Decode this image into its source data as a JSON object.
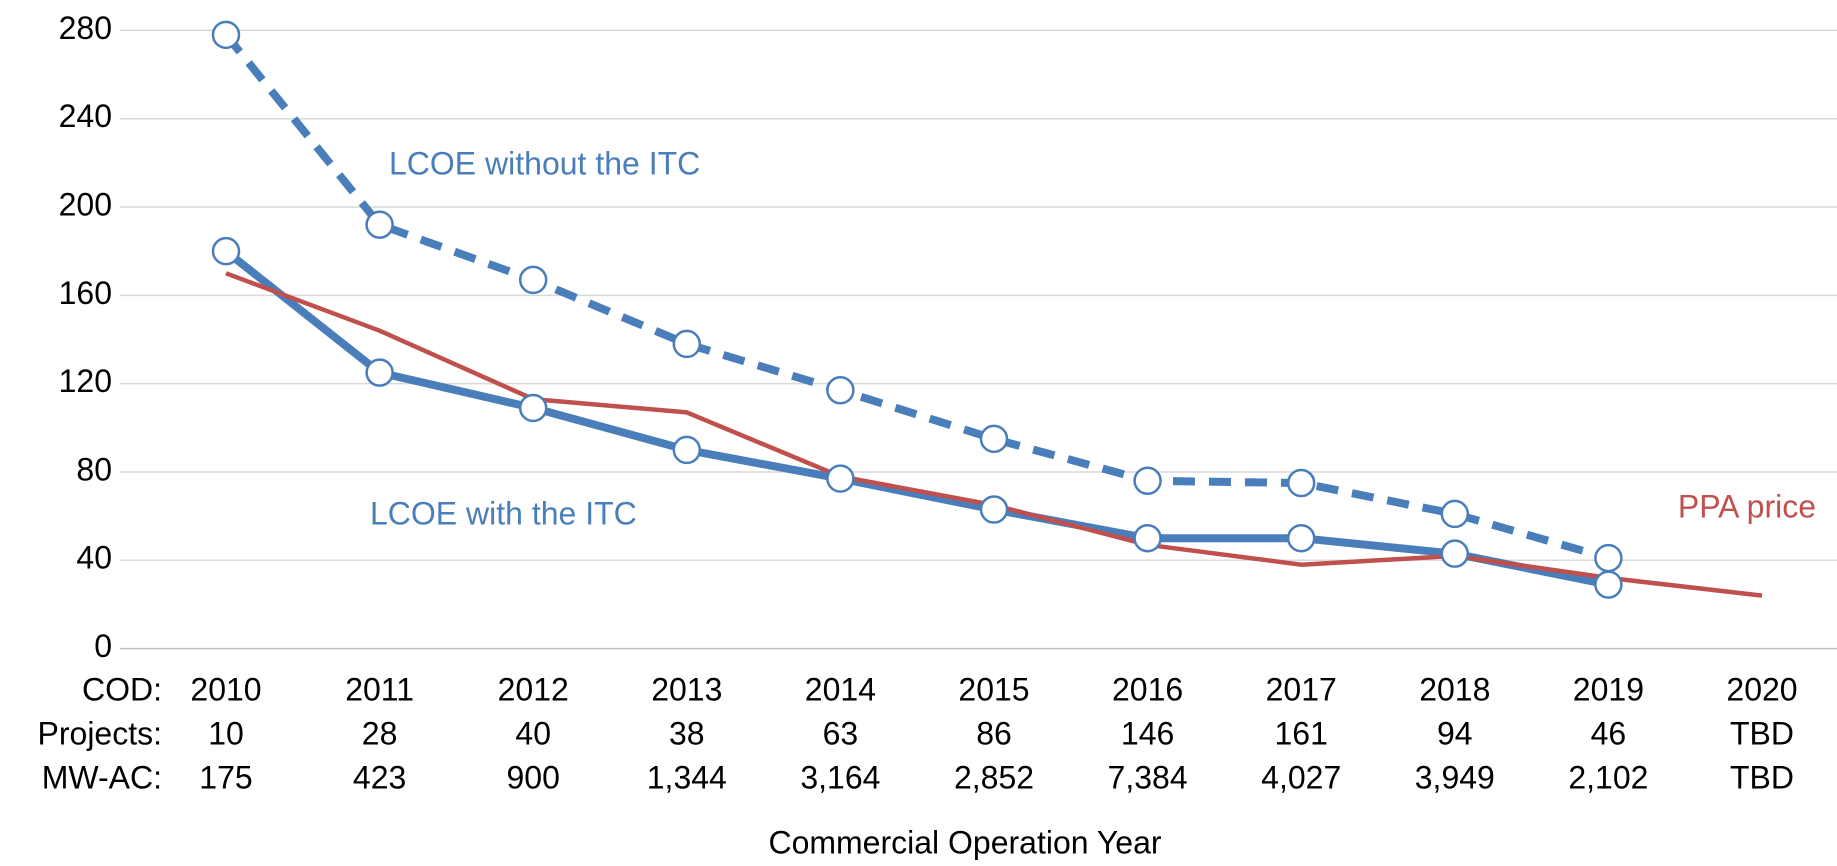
{
  "chart_data": {
    "type": "line",
    "x_label": "Commercial Operation Year",
    "category_label": "COD:",
    "categories": [
      "2010",
      "2011",
      "2012",
      "2013",
      "2014",
      "2015",
      "2016",
      "2017",
      "2018",
      "2019",
      "2020"
    ],
    "series": [
      {
        "name": "LCOE without the ITC",
        "color": "#4a7ebb",
        "line_style": "dashed",
        "markers": true,
        "values": [
          278,
          192,
          167,
          138,
          117,
          95,
          76,
          75,
          61,
          41,
          null
        ]
      },
      {
        "name": "LCOE with the ITC",
        "color": "#4a7ebb",
        "line_style": "solid",
        "markers": true,
        "values": [
          180,
          125,
          109,
          90,
          77,
          63,
          50,
          50,
          43,
          29,
          null
        ]
      },
      {
        "name": "PPA price",
        "color": "#c0504d",
        "line_style": "solid",
        "markers": false,
        "values": [
          170,
          144,
          113,
          107,
          78,
          65,
          47,
          38,
          42,
          32,
          24
        ]
      }
    ],
    "table_rows": [
      {
        "label": "Projects:",
        "values": [
          "10",
          "28",
          "40",
          "38",
          "63",
          "86",
          "146",
          "161",
          "94",
          "46",
          "TBD"
        ]
      },
      {
        "label": "MW-AC:",
        "values": [
          "175",
          "423",
          "900",
          "1,344",
          "3,164",
          "2,852",
          "7,384",
          "4,027",
          "3,949",
          "2,102",
          "TBD"
        ]
      }
    ],
    "ylim": [
      0,
      280
    ],
    "yticks": [
      0,
      40,
      80,
      120,
      160,
      200,
      240,
      280
    ],
    "grid": true
  }
}
